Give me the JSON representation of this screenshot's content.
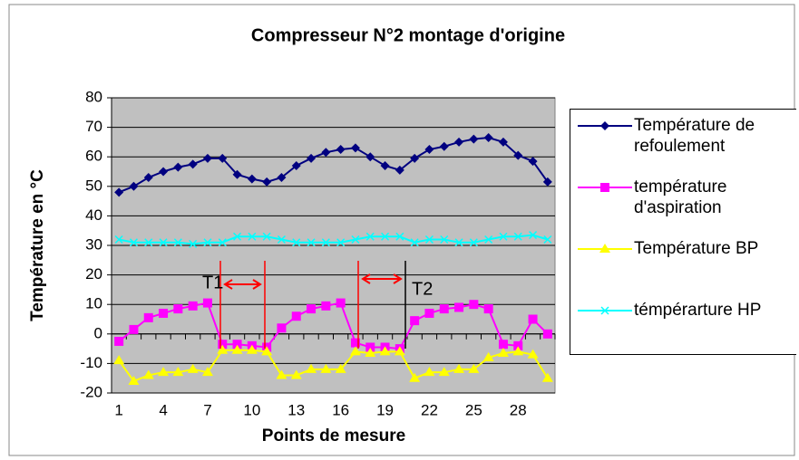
{
  "chart_data": {
    "type": "line",
    "title": "Compresseur N°2 montage d'origine",
    "x_label": "Points de mesure",
    "y_label": "Température en °C",
    "categories": [
      1,
      null,
      null,
      4,
      null,
      null,
      7,
      null,
      null,
      10,
      null,
      null,
      13,
      null,
      null,
      16,
      null,
      null,
      19,
      null,
      null,
      22,
      null,
      null,
      25,
      null,
      null,
      28,
      null,
      null
    ],
    "ylim": [
      -20,
      80
    ],
    "yticks": [
      -20,
      -10,
      0,
      10,
      20,
      30,
      40,
      50,
      60,
      70,
      80
    ],
    "grid": true,
    "legend": "right",
    "annotations": [
      "T1",
      "T2"
    ],
    "series": [
      {
        "name": "Température de refoulement",
        "color": "#000080",
        "marker": "diamond",
        "values": [
          48,
          50,
          53,
          55,
          56.5,
          57.5,
          59.5,
          59.5,
          54,
          52.5,
          51.5,
          53,
          57,
          59.5,
          61.5,
          62.5,
          63,
          60,
          57,
          55.5,
          59.5,
          62.5,
          63.5,
          65,
          66,
          66.5,
          65,
          60.5,
          58.5,
          51.5
        ]
      },
      {
        "name": "température d'aspiration",
        "color": "#ff00ff",
        "marker": "square",
        "values": [
          -2.5,
          1.5,
          5.5,
          7,
          8.5,
          9.5,
          10.5,
          -3.5,
          -3.5,
          -4,
          -4.5,
          2,
          6,
          8.5,
          9.5,
          10.5,
          -3,
          -4.5,
          -4.5,
          -5,
          4.5,
          7,
          8.5,
          9,
          10,
          8.5,
          -3.5,
          -4,
          5,
          0
        ]
      },
      {
        "name": "Température BP",
        "color": "#ffff00",
        "marker": "triangle",
        "values": [
          -9,
          -16,
          -14,
          -13,
          -13,
          -12,
          -13,
          -5.5,
          -5.5,
          -5.5,
          -6,
          -14,
          -14,
          -12,
          -12,
          -12,
          -6,
          -6.5,
          -6,
          -6,
          -15,
          -13,
          -13,
          -12,
          -12,
          -8,
          -6.5,
          -6,
          -7,
          -15
        ]
      },
      {
        "name": "témpérarture HP",
        "color": "#00ffff",
        "marker": "x",
        "values": [
          32,
          31,
          31,
          31,
          31,
          30.5,
          31,
          31,
          33,
          33,
          33,
          32,
          31,
          31,
          31,
          31,
          32,
          33,
          33,
          33,
          31,
          32,
          32,
          31,
          31,
          32,
          33,
          33,
          33.5,
          32
        ]
      }
    ]
  }
}
